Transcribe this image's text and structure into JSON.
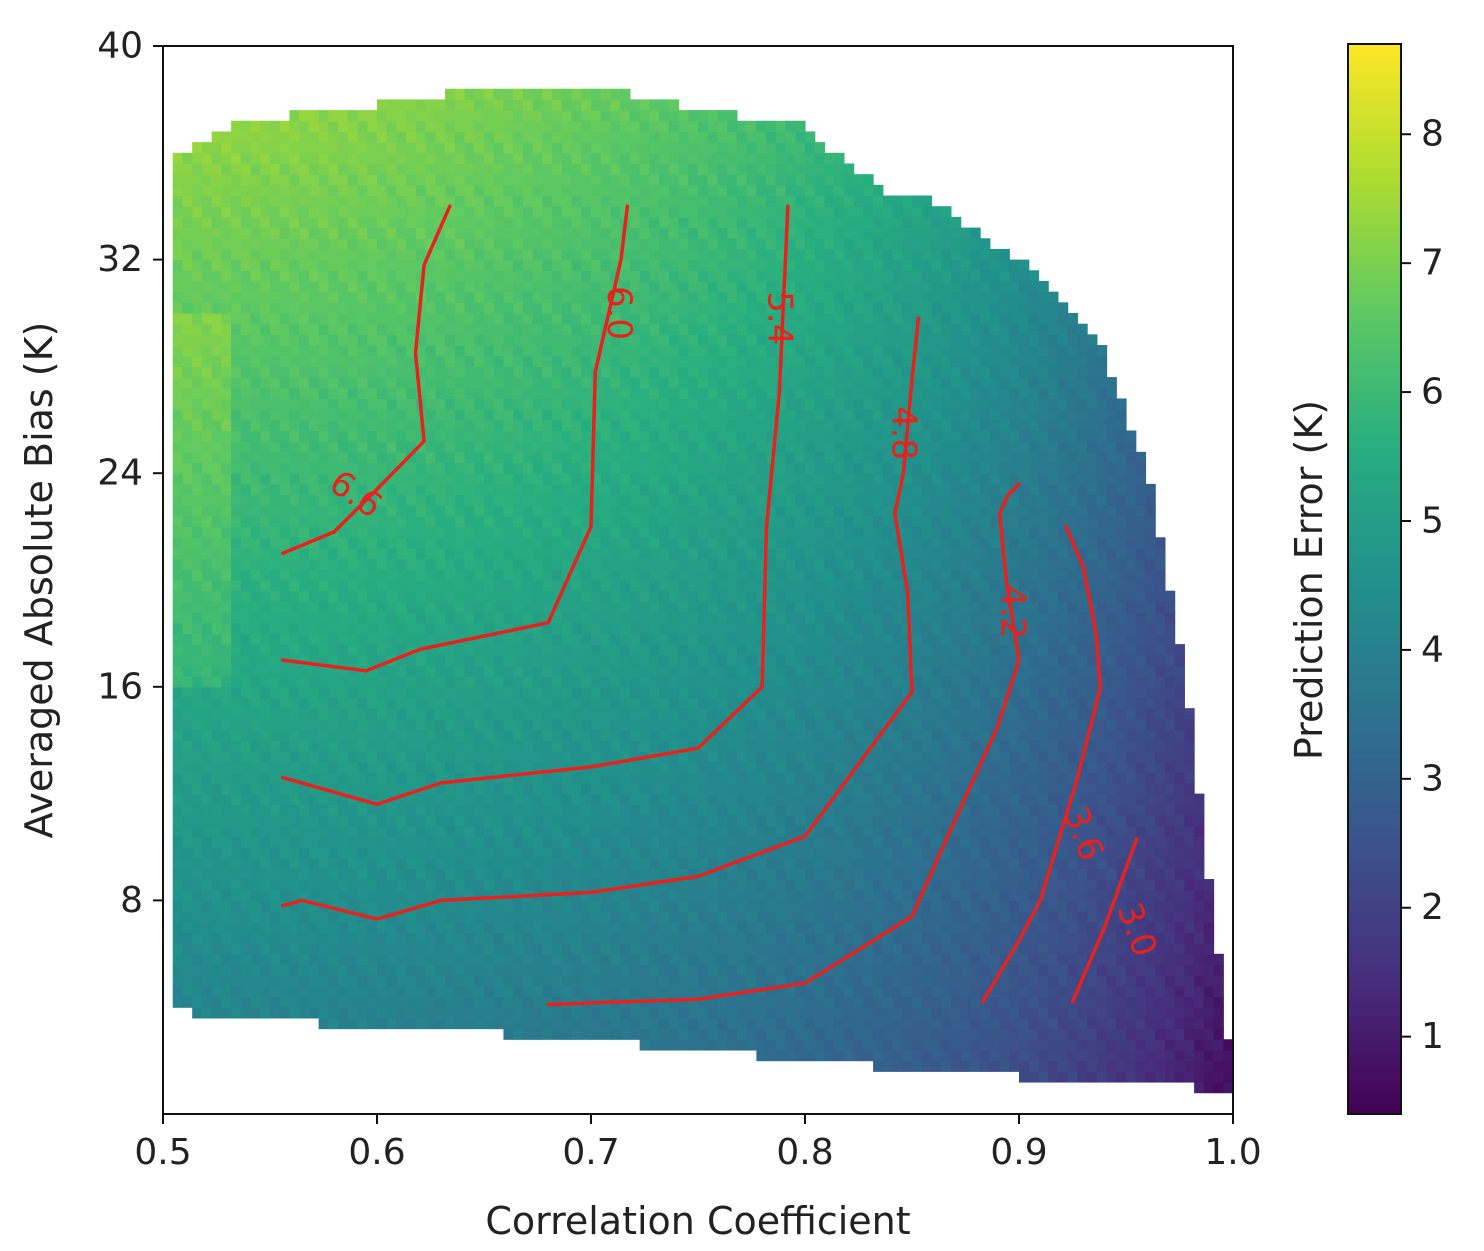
{
  "chart_data": {
    "type": "heatmap",
    "title": "",
    "xlabel": "Correlation Coefficient",
    "ylabel": "Averaged Absolute Bias (K)",
    "xlim": [
      0.5,
      1.0
    ],
    "ylim": [
      0,
      40
    ],
    "xticks": [
      0.5,
      0.6,
      0.7,
      0.8,
      0.9,
      1.0
    ],
    "xtick_labels": [
      "0.5",
      "0.6",
      "0.7",
      "0.8",
      "0.9",
      "1.0"
    ],
    "yticks": [
      8,
      16,
      24,
      32,
      40
    ],
    "ytick_labels": [
      "8",
      "16",
      "24",
      "32",
      "40"
    ],
    "colorbar": {
      "label": "Prediction Error (K)",
      "range": [
        0.4,
        8.7
      ],
      "ticks": [
        1,
        2,
        3,
        4,
        5,
        6,
        7,
        8
      ],
      "tick_labels": [
        "1",
        "2",
        "3",
        "4",
        "5",
        "6",
        "7",
        "8"
      ],
      "colormap": "viridis",
      "colors": [
        "#440154",
        "#472d7b",
        "#3b528b",
        "#2c728e",
        "#21918c",
        "#28ae80",
        "#5ec962",
        "#addc30",
        "#fde725"
      ]
    },
    "domain": {
      "x_start": 0.5,
      "top_edge": [
        [
          0.5,
          35.5
        ],
        [
          0.52,
          36.5
        ],
        [
          0.54,
          37.3
        ],
        [
          0.58,
          37.5
        ],
        [
          0.6,
          37.8
        ],
        [
          0.66,
          38.6
        ],
        [
          0.7,
          38.5
        ],
        [
          0.74,
          37.8
        ],
        [
          0.76,
          37.5
        ],
        [
          0.8,
          37.0
        ],
        [
          0.82,
          35.5
        ],
        [
          0.84,
          34.5
        ],
        [
          0.86,
          34.2
        ],
        [
          0.88,
          33.0
        ],
        [
          0.9,
          32.0
        ],
        [
          0.92,
          30.5
        ],
        [
          0.94,
          28.5
        ],
        [
          0.96,
          24.0
        ],
        [
          0.97,
          20.0
        ],
        [
          0.98,
          15.0
        ],
        [
          0.99,
          8.0
        ],
        [
          1.0,
          1.5
        ]
      ],
      "bottom_edge": [
        [
          0.5,
          3.9
        ],
        [
          0.55,
          3.5
        ],
        [
          0.6,
          3.3
        ],
        [
          0.7,
          2.8
        ],
        [
          0.8,
          2.0
        ],
        [
          0.9,
          1.4
        ],
        [
          0.95,
          1.2
        ],
        [
          1.0,
          0.9
        ]
      ]
    },
    "series": [
      {
        "name": "6.6",
        "label_at": [
          0.59,
          23.2
        ],
        "label_angle": 35,
        "x": [
          0.556,
          0.58,
          0.6,
          0.622,
          0.618,
          0.622,
          0.634
        ],
        "y": [
          21.0,
          21.8,
          23.4,
          25.2,
          28.5,
          31.8,
          34.0
        ]
      },
      {
        "name": "6.0",
        "label_at": [
          0.713,
          30.0
        ],
        "label_angle": 90,
        "x": [
          0.556,
          0.595,
          0.62,
          0.68,
          0.7,
          0.702,
          0.714,
          0.717
        ],
        "y": [
          17.0,
          16.6,
          17.4,
          18.4,
          22.0,
          27.8,
          32.0,
          34.0
        ]
      },
      {
        "name": "5.4",
        "label_at": [
          0.788,
          29.8
        ],
        "label_angle": 90,
        "x": [
          0.556,
          0.6,
          0.63,
          0.7,
          0.75,
          0.78,
          0.782,
          0.788,
          0.792
        ],
        "y": [
          12.6,
          11.6,
          12.4,
          13.0,
          13.7,
          16.0,
          22.0,
          27.0,
          34.0
        ]
      },
      {
        "name": "4.8",
        "label_at": [
          0.846,
          25.5
        ],
        "label_angle": 90,
        "x": [
          0.556,
          0.565,
          0.6,
          0.63,
          0.7,
          0.75,
          0.8,
          0.85,
          0.848,
          0.842,
          0.846,
          0.85,
          0.853
        ],
        "y": [
          7.8,
          8.0,
          7.3,
          8.0,
          8.3,
          8.9,
          10.4,
          15.8,
          19.5,
          22.5,
          24.0,
          27.5,
          29.8
        ]
      },
      {
        "name": "4.2",
        "label_at": [
          0.897,
          18.8
        ],
        "label_angle": 90,
        "x": [
          0.68,
          0.75,
          0.8,
          0.85,
          0.87,
          0.89,
          0.9,
          0.894,
          0.891,
          0.895,
          0.9
        ],
        "y": [
          4.1,
          4.3,
          4.9,
          7.4,
          11.0,
          14.5,
          17.0,
          20.0,
          22.5,
          23.2,
          23.6
        ]
      },
      {
        "name": "3.6",
        "label_at": [
          0.93,
          10.5
        ],
        "label_angle": 70,
        "x": [
          0.883,
          0.9,
          0.91,
          0.927,
          0.935,
          0.938,
          0.936,
          0.93,
          0.922
        ],
        "y": [
          4.2,
          6.5,
          8.0,
          12.5,
          15.0,
          16.0,
          18.0,
          20.5,
          22.0
        ]
      },
      {
        "name": "3.0",
        "label_at": [
          0.955,
          6.9
        ],
        "label_angle": 70,
        "x": [
          0.925,
          0.94,
          0.955
        ],
        "y": [
          4.2,
          7.0,
          10.3
        ]
      }
    ]
  }
}
